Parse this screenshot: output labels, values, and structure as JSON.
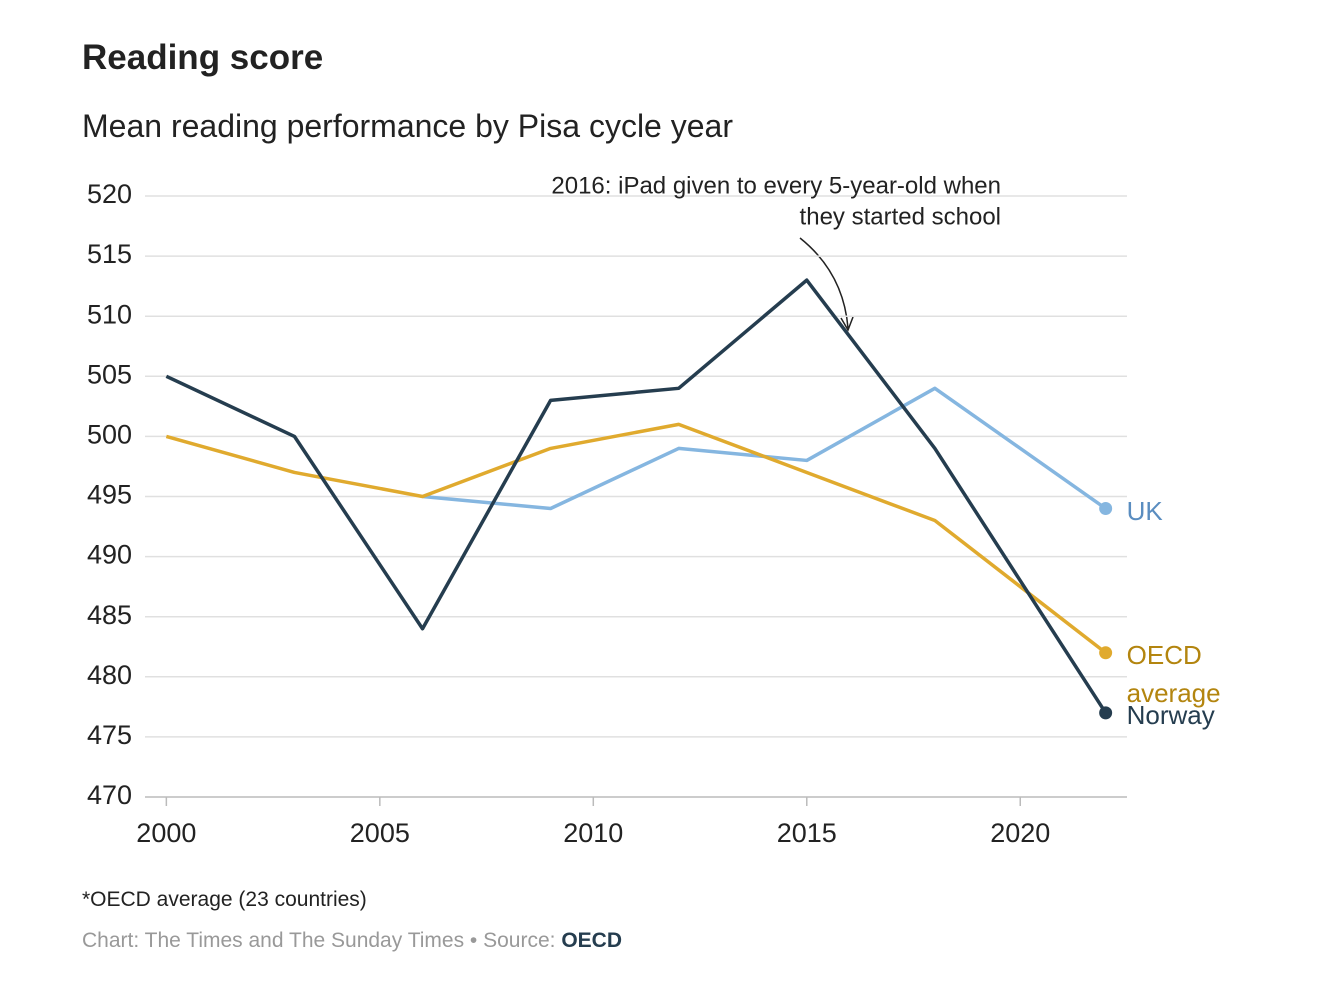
{
  "chart_data": {
    "type": "line",
    "title": "Reading score",
    "subtitle": "Mean reading performance by Pisa cycle year",
    "annotation": [
      "2016: iPad given to every 5-year-old when",
      "they started school"
    ],
    "x": [
      2000,
      2003,
      2006,
      2009,
      2012,
      2015,
      2018,
      2022
    ],
    "series": [
      {
        "name": "UK",
        "color": "#85b6e0",
        "label_color": "#5a8dc0",
        "values": [
          null,
          null,
          495,
          494,
          499,
          498,
          504,
          494
        ]
      },
      {
        "name": "OECD average",
        "color": "#e0aa2e",
        "label_color": "#b3850f",
        "values": [
          500,
          497,
          495,
          499,
          501,
          497,
          493,
          482
        ]
      },
      {
        "name": "Norway",
        "color": "#253d4f",
        "label_color": "#253d4f",
        "values": [
          505,
          500,
          484,
          503,
          504,
          513,
          499,
          477
        ]
      }
    ],
    "xlim": [
      1999.5,
      2022.5
    ],
    "xticks": [
      2000,
      2005,
      2010,
      2015,
      2020
    ],
    "ylim": [
      470,
      520
    ],
    "yticks": [
      470,
      475,
      480,
      485,
      490,
      495,
      500,
      505,
      510,
      515,
      520
    ],
    "grid": true,
    "note": "*OECD average (23 countries)",
    "credit": "Chart: The Times and The Sunday Times • Source:",
    "source": "OECD"
  }
}
